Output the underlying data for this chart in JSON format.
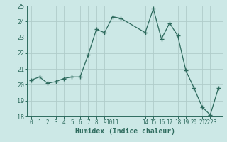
{
  "x": [
    0,
    1,
    2,
    3,
    4,
    5,
    6,
    7,
    8,
    9,
    10,
    11,
    14,
    15,
    16,
    17,
    18,
    19,
    20,
    21,
    22,
    23
  ],
  "y": [
    20.3,
    20.5,
    20.1,
    20.2,
    20.4,
    20.5,
    20.5,
    21.9,
    23.5,
    23.3,
    24.3,
    24.2,
    23.3,
    24.8,
    22.9,
    23.9,
    23.1,
    20.9,
    19.8,
    18.6,
    18.1,
    19.8
  ],
  "line_color": "#2e6b5e",
  "marker": "+",
  "marker_size": 4,
  "marker_color": "#2e6b5e",
  "bg_color": "#cce8e6",
  "grid_color": "#b0ccca",
  "tick_color": "#2e6b5e",
  "xlabel": "Humidex (Indice chaleur)",
  "xlim": [
    -0.5,
    23.5
  ],
  "ylim": [
    18,
    25
  ],
  "yticks": [
    18,
    19,
    20,
    21,
    22,
    23,
    24,
    25
  ],
  "custom_xtick_pos": [
    0,
    1,
    2,
    3,
    4,
    5,
    6,
    7,
    8,
    9,
    10,
    14,
    15,
    16,
    17,
    18,
    19,
    20,
    21,
    22
  ],
  "custom_xtick_labels": [
    "0",
    "1",
    "2",
    "3",
    "4",
    "5",
    "6",
    "7",
    "8",
    "9",
    "1011",
    "14",
    "15",
    "16",
    "17",
    "18",
    "19",
    "20",
    "21",
    "2223"
  ]
}
